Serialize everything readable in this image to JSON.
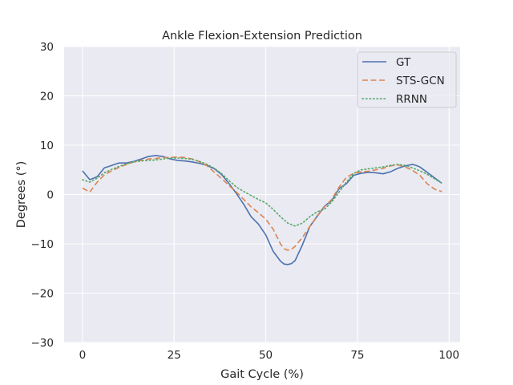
{
  "chart_data": {
    "type": "line",
    "title": "Ankle Flexion-Extension Prediction",
    "xlabel": "Gait Cycle (%)",
    "ylabel": "Degrees (°)",
    "xlim": [
      -5,
      103
    ],
    "ylim": [
      -30,
      30
    ],
    "xticks": [
      0,
      25,
      50,
      75,
      100
    ],
    "yticks": [
      -30,
      -20,
      -10,
      0,
      10,
      20,
      30
    ],
    "xtick_labels": [
      "0",
      "25",
      "50",
      "75",
      "100"
    ],
    "ytick_labels": [
      "−30",
      "−20",
      "−10",
      "0",
      "10",
      "20",
      "30"
    ],
    "grid": true,
    "legend_position": "upper right",
    "background": "#eaeaf2",
    "series": [
      {
        "name": "GT",
        "color": "#4c72b0",
        "dash": "solid",
        "x": [
          0,
          2,
          4,
          6,
          8,
          10,
          12,
          14,
          16,
          18,
          20,
          22,
          24,
          26,
          28,
          30,
          32,
          34,
          36,
          38,
          40,
          42,
          44,
          46,
          48,
          50,
          52,
          54,
          55,
          56,
          57,
          58,
          60,
          62,
          64,
          66,
          68,
          70,
          72,
          74,
          76,
          78,
          80,
          82,
          84,
          86,
          88,
          90,
          91,
          92,
          94,
          96,
          98
        ],
        "y": [
          4.8,
          3.0,
          3.6,
          5.4,
          5.9,
          6.4,
          6.4,
          6.7,
          7.2,
          7.7,
          7.9,
          7.7,
          7.2,
          6.9,
          6.8,
          6.6,
          6.3,
          5.9,
          5.2,
          4.0,
          2.2,
          0.2,
          -2.0,
          -4.5,
          -6.0,
          -8.2,
          -11.5,
          -13.5,
          -14.1,
          -14.2,
          -14.0,
          -13.4,
          -10.2,
          -6.5,
          -4.4,
          -2.4,
          -1.2,
          1.2,
          2.2,
          3.9,
          4.3,
          4.5,
          4.4,
          4.2,
          4.6,
          5.3,
          5.8,
          6.1,
          5.9,
          5.6,
          4.5,
          3.4,
          2.3
        ]
      },
      {
        "name": "STS-GCN",
        "color": "#dd8452",
        "dash": "7,3.5",
        "x": [
          0,
          2,
          4,
          6,
          8,
          10,
          12,
          14,
          16,
          18,
          20,
          22,
          24,
          26,
          28,
          30,
          32,
          34,
          36,
          38,
          40,
          42,
          44,
          46,
          48,
          50,
          52,
          54,
          55,
          56,
          57,
          58,
          60,
          62,
          64,
          66,
          68,
          70,
          72,
          74,
          76,
          78,
          80,
          82,
          84,
          86,
          88,
          90,
          92,
          94,
          96,
          98
        ],
        "y": [
          1.3,
          0.5,
          2.5,
          4.0,
          4.8,
          5.5,
          6.1,
          6.6,
          6.9,
          7.2,
          7.3,
          7.5,
          7.5,
          7.6,
          7.5,
          7.2,
          6.6,
          5.8,
          4.5,
          3.2,
          1.8,
          0.5,
          -1.0,
          -2.5,
          -3.7,
          -5.0,
          -7.0,
          -10.0,
          -11.0,
          -11.3,
          -11.1,
          -10.5,
          -8.7,
          -6.5,
          -4.5,
          -2.5,
          -1.0,
          1.5,
          3.5,
          4.3,
          4.6,
          4.7,
          5.0,
          5.3,
          5.8,
          6.0,
          5.6,
          4.9,
          3.9,
          2.2,
          1.1,
          0.6
        ]
      },
      {
        "name": "RRNN",
        "color": "#55a868",
        "dash": "1.5,3",
        "x": [
          0,
          2,
          4,
          6,
          8,
          10,
          12,
          14,
          16,
          18,
          20,
          22,
          24,
          26,
          28,
          30,
          32,
          34,
          36,
          38,
          40,
          42,
          44,
          46,
          48,
          50,
          52,
          54,
          56,
          58,
          60,
          62,
          64,
          66,
          68,
          70,
          72,
          74,
          76,
          78,
          80,
          82,
          84,
          86,
          88,
          90,
          92,
          94,
          96,
          98
        ],
        "y": [
          3.0,
          2.5,
          3.3,
          4.4,
          5.1,
          5.7,
          6.2,
          6.6,
          6.8,
          6.9,
          7.0,
          7.2,
          7.4,
          7.4,
          7.3,
          7.1,
          6.7,
          6.1,
          5.3,
          4.2,
          2.8,
          1.5,
          0.6,
          -0.2,
          -1.0,
          -1.7,
          -3.0,
          -4.5,
          -5.8,
          -6.4,
          -5.8,
          -4.5,
          -3.5,
          -3.0,
          -1.5,
          0.5,
          2.5,
          4.3,
          5.0,
          5.2,
          5.4,
          5.6,
          5.9,
          6.1,
          5.9,
          5.4,
          4.8,
          4.1,
          3.2,
          2.3
        ]
      }
    ]
  }
}
